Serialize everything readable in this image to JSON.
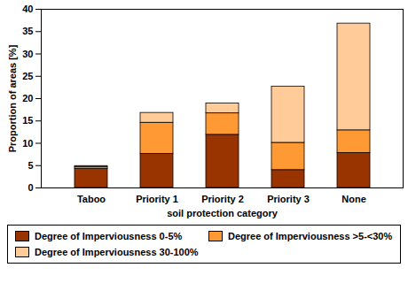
{
  "chart_data": {
    "type": "bar",
    "stacked": true,
    "categories": [
      "Taboo",
      "Priority 1",
      "Priority 2",
      "Priority 3",
      "None"
    ],
    "series": [
      {
        "name": "Degree of Imperviousness 0-5%",
        "color": "#993300",
        "values": [
          4.3,
          7.6,
          11.9,
          4.0,
          7.8
        ]
      },
      {
        "name": "Degree of Imperviousness >5-<30%",
        "color": "#FF9933",
        "values": [
          0.4,
          7.0,
          4.8,
          6.1,
          5.1
        ]
      },
      {
        "name": "Degree of Imperviousness 30-100%",
        "color": "#FFCC99",
        "values": [
          0.2,
          2.2,
          2.2,
          12.6,
          23.9
        ]
      }
    ],
    "xlabel": "soil protection category",
    "ylabel": "Proportion of areas [%]",
    "ylim": [
      0,
      40
    ],
    "yticks": [
      0,
      5,
      10,
      15,
      20,
      25,
      30,
      35,
      40
    ],
    "grid": false,
    "legend": "bottom"
  }
}
